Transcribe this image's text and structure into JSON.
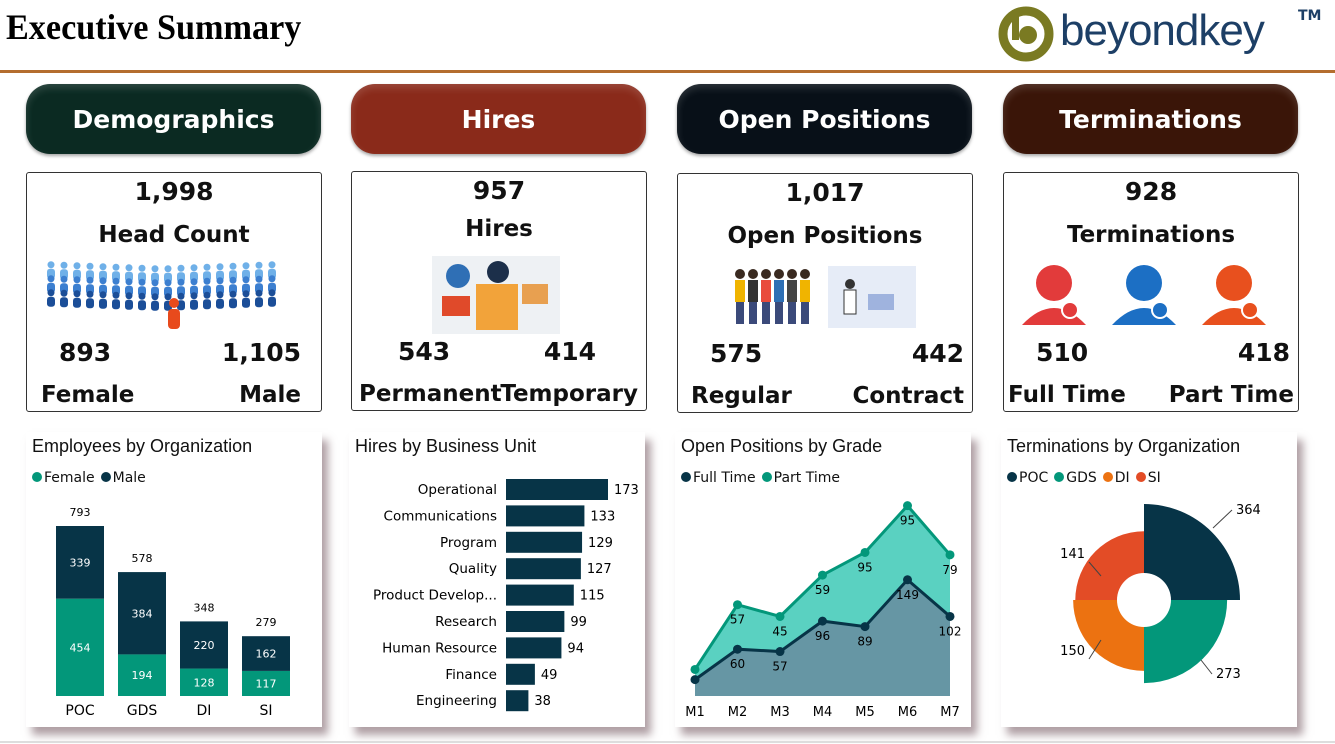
{
  "header": {
    "title": "Executive Summary",
    "logo_text": "beyondkey",
    "logo_tm": "TM"
  },
  "sections": [
    {
      "label": "Demographics",
      "color": "#0b2a22"
    },
    {
      "label": "Hires",
      "color": "#8a2a1a"
    },
    {
      "label": "Open Positions",
      "color": "#081018"
    },
    {
      "label": "Terminations",
      "color": "#3a1508"
    }
  ],
  "kpis": [
    {
      "value": "1,998",
      "label": "Head Count",
      "left_value": "893",
      "left_label": "Female",
      "right_value": "1,105",
      "right_label": "Male",
      "icon": "crowd-icon"
    },
    {
      "value": "957",
      "label": "Hires",
      "left_value": "543",
      "left_label": "Permanent",
      "right_value": "414",
      "right_label": "Temporary",
      "icon": "hiring-illustration-icon"
    },
    {
      "value": "1,017",
      "label": "Open Positions",
      "left_value": "575",
      "left_label": "Regular",
      "right_value": "442",
      "right_label": "Contract",
      "icon": "team-office-icon"
    },
    {
      "value": "928",
      "label": "Terminations",
      "left_value": "510",
      "left_label": "Full Time",
      "right_value": "418",
      "right_label": "Part Time",
      "icon": "user-removed-icon"
    }
  ],
  "colors": {
    "dark": "#073447",
    "teal": "#03977a",
    "orange": "#ec7211",
    "red": "#e34c26",
    "area_light": "#5ad1c1",
    "area_dark": "#6696a4"
  },
  "chart_data": [
    {
      "type": "bar",
      "stacked": true,
      "title": "Employees by Organization",
      "categories": [
        "POC",
        "GDS",
        "DI",
        "SI"
      ],
      "series": [
        {
          "name": "Female",
          "values": [
            454,
            194,
            128,
            117
          ]
        },
        {
          "name": "Male",
          "values": [
            339,
            384,
            220,
            162
          ]
        }
      ],
      "totals": [
        793,
        578,
        348,
        279
      ],
      "legend": "top-left"
    },
    {
      "type": "bar",
      "orientation": "horizontal",
      "title": "Hires by Business Unit",
      "categories": [
        "Operational",
        "Communications",
        "Program",
        "Quality",
        "Product Develop...",
        "Research",
        "Human Resource",
        "Finance",
        "Engineering"
      ],
      "values": [
        173,
        133,
        129,
        127,
        115,
        99,
        94,
        49,
        38
      ]
    },
    {
      "type": "area",
      "stacked": true,
      "title": "Open Positions by Grade",
      "categories": [
        "M1",
        "M2",
        "M3",
        "M4",
        "M5",
        "M6",
        "M7"
      ],
      "series": [
        {
          "name": "Full Time",
          "values": [
            21,
            60,
            57,
            96,
            89,
            149,
            102
          ],
          "labels": [
            "",
            "60",
            "57",
            "96",
            "89",
            "149",
            "102"
          ]
        },
        {
          "name": "Part Time",
          "values": [
            13,
            57,
            45,
            59,
            95,
            95,
            79
          ],
          "labels": [
            "",
            "57",
            "45",
            "59",
            "95",
            "95",
            "79"
          ]
        }
      ],
      "legend": "top-left"
    },
    {
      "type": "pie",
      "variant": "polar-rose-donut",
      "title": "Terminations by Organization",
      "categories": [
        "POC",
        "GDS",
        "DI",
        "SI"
      ],
      "values": [
        364,
        273,
        150,
        141
      ],
      "legend": "top-left"
    }
  ]
}
